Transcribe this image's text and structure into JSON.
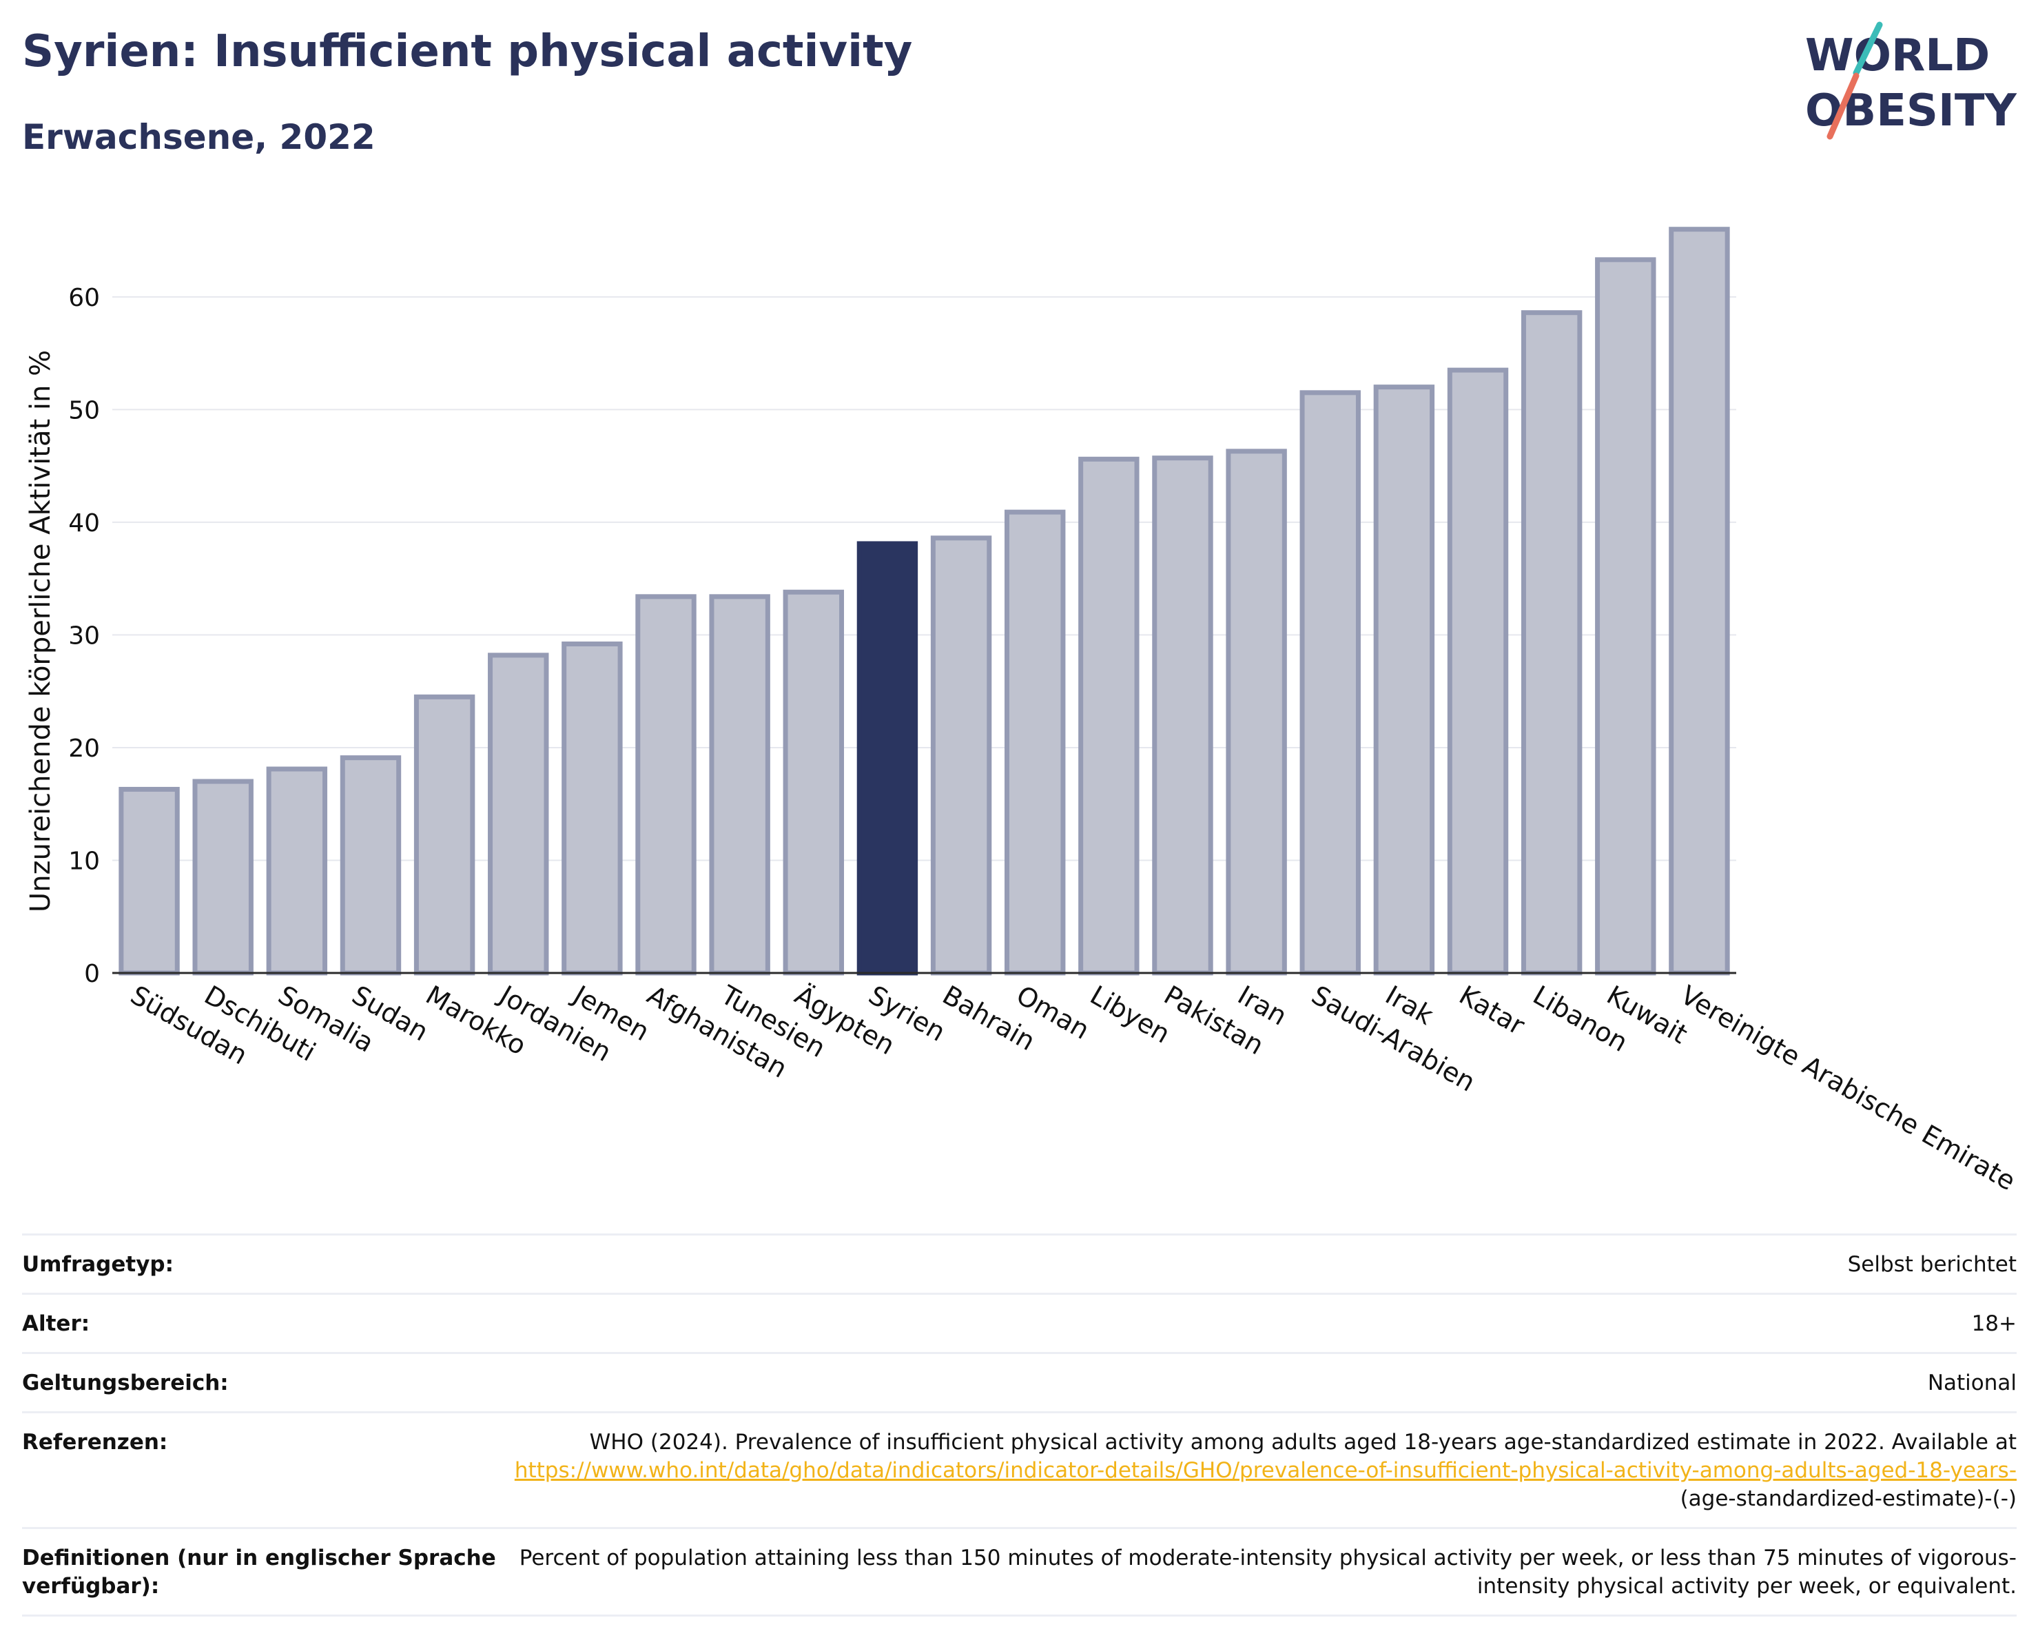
{
  "header": {
    "title": "Syrien: Insufficient physical activity",
    "subtitle": "Erwachsene, 2022"
  },
  "logo": {
    "line1": "WORLD",
    "line2": "OBESITY"
  },
  "colors": {
    "highlight": "#2a3560",
    "bar": "#bfc2cf",
    "bar_border": "#959bb4",
    "grid": "#e6e8ee",
    "accent_teal": "#3bbcb8",
    "accent_coral": "#e8705c"
  },
  "chart_data": {
    "type": "bar",
    "ylabel": "Unzureichende körperliche Aktivität in %",
    "ylim": [
      0,
      68
    ],
    "yticks": [
      0,
      10,
      20,
      30,
      40,
      50,
      60
    ],
    "highlight": "Syrien",
    "categories": [
      "Südsudan",
      "Dschibuti",
      "Somalia",
      "Sudan",
      "Marokko",
      "Jordanien",
      "Jemen",
      "Afghanistan",
      "Tunesien",
      "Ägypten",
      "Syrien",
      "Bahrain",
      "Oman",
      "Libyen",
      "Pakistan",
      "Iran",
      "Saudi-Arabien",
      "Irak",
      "Katar",
      "Libanon",
      "Kuwait",
      "Vereinigte Arabische Emirate"
    ],
    "values": [
      16.3,
      17.0,
      18.1,
      19.1,
      24.5,
      28.2,
      29.2,
      33.4,
      33.4,
      33.8,
      38.1,
      38.6,
      40.9,
      45.6,
      45.7,
      46.3,
      51.5,
      52.0,
      53.5,
      58.6,
      63.3,
      66.0
    ]
  },
  "meta": {
    "survey_label": "Umfragetyp:",
    "survey_value": "Selbst berichtet",
    "age_label": "Alter:",
    "age_value": "18+",
    "scope_label": "Geltungsbereich:",
    "scope_value": "National",
    "ref_label": "Referenzen:",
    "ref_text": "WHO (2024). Prevalence of insufficient physical activity among adults aged 18-years age-standardized estimate in 2022. Available at",
    "ref_link": "https://www.who.int/data/gho/data/indicators/indicator-details/GHO/prevalence-of-insufficient-physical-activity-among-adults-aged-18-years-",
    "ref_suffix": "(age-standardized-estimate)-(-)",
    "def_label": "Definitionen (nur in englischer Sprache verfügbar):",
    "def_value": "Percent of population attaining less than 150 minutes of moderate-intensity physical activity per week, or less than 75 minutes of vigorous-intensity physical activity per week, or equivalent."
  }
}
